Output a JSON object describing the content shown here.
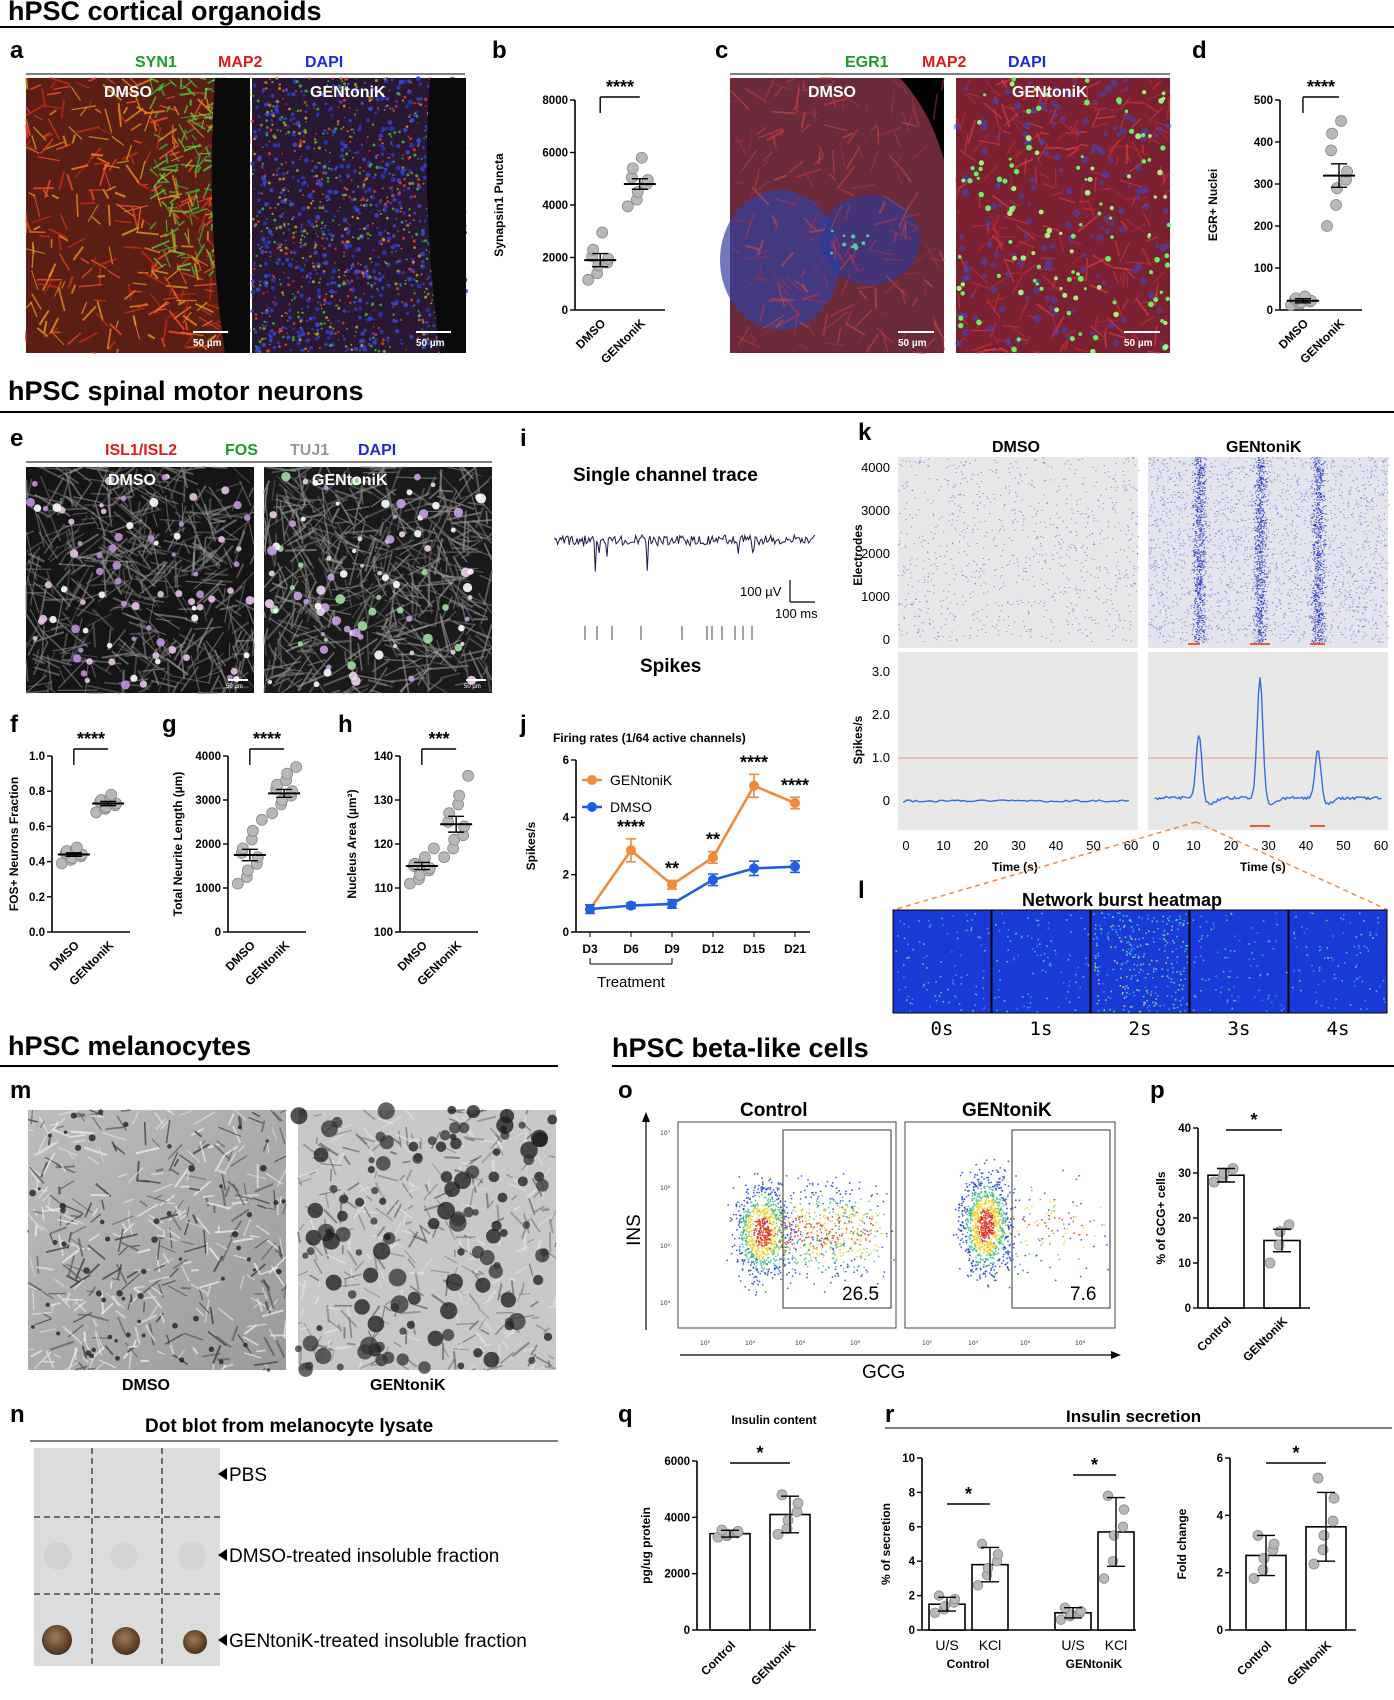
{
  "sections": {
    "cortical": "hPSC cortical organoids",
    "motor": "hPSC spinal motor neurons",
    "melanocytes": "hPSC melanocytes",
    "beta": "hPSC beta-like cells"
  },
  "panel_letters": [
    "a",
    "b",
    "c",
    "d",
    "e",
    "f",
    "g",
    "h",
    "i",
    "j",
    "k",
    "l",
    "m",
    "n",
    "o",
    "p",
    "q",
    "r"
  ],
  "colors": {
    "green": "#1a9a2a",
    "red": "#e01b1b",
    "blue": "#1f2ad6",
    "gray": "#999999",
    "orange": "#f08a3c",
    "dmso_blue": "#1f5fe0",
    "dot": "#b8b8b8"
  },
  "panel_a": {
    "stains": [
      "SYN1",
      "MAP2",
      "DAPI"
    ],
    "images": [
      {
        "label": "DMSO",
        "scalebar": "50 µm"
      },
      {
        "label": "GENtoniK",
        "scalebar": "50 µm"
      }
    ]
  },
  "panel_c": {
    "stains": [
      "EGR1",
      "MAP2",
      "DAPI"
    ],
    "images": [
      {
        "label": "DMSO",
        "scalebar": "50 µm"
      },
      {
        "label": "GENtoniK",
        "scalebar": "50 µm"
      }
    ]
  },
  "panel_e": {
    "stains": [
      "ISL1/ISL2",
      "FOS",
      "TUJ1",
      "DAPI"
    ],
    "images": [
      {
        "label": "DMSO",
        "scalebar": "50 µm"
      },
      {
        "label": "GENtoniK",
        "scalebar": "50 µm"
      }
    ]
  },
  "panel_i": {
    "title": "Single channel trace",
    "scale_v": "100 µV",
    "scale_t": "100 ms",
    "spikes_label": "Spikes"
  },
  "panel_k": {
    "col_titles": [
      "DMSO",
      "GENtoniK"
    ],
    "raster_ylabel": "Electrodes",
    "raster_yticks": [
      "4000",
      "3000",
      "2000",
      "1000",
      "0"
    ],
    "rate_ylabel": "Spikes/s",
    "rate_yticks": [
      "3.0",
      "2.0",
      "1.0",
      "0"
    ],
    "xticks": [
      "0",
      "10",
      "20",
      "30",
      "40",
      "50",
      "60"
    ],
    "xlabel": "Time (s)"
  },
  "panel_l": {
    "title": "Network burst heatmap",
    "frames": [
      "0s",
      "1s",
      "2s",
      "3s",
      "4s"
    ]
  },
  "panel_m": {
    "labels": [
      "DMSO",
      "GENtoniK"
    ]
  },
  "panel_n": {
    "title": "Dot blot from melanocyte lysate",
    "rows": [
      "PBS",
      "DMSO-treated insoluble fraction",
      "GENtoniK-treated insoluble fraction"
    ]
  },
  "panel_o": {
    "titles": [
      "Control",
      "GENtoniK"
    ],
    "ylabel": "INS",
    "xlabel": "GCG",
    "gates": [
      "26.5",
      "7.6"
    ],
    "yticks": [
      "10⁷",
      "10⁶",
      "10⁵",
      "10⁴"
    ],
    "xticks": [
      "10²",
      "10⁴",
      "10⁶",
      "10⁸"
    ]
  },
  "panel_r": {
    "title": "Insulin secretion"
  },
  "chart_data": [
    {
      "panel": "b",
      "type": "scatter",
      "ylabel": "Synapsin1 Puncta",
      "categories": [
        "DMSO",
        "GENtoniK"
      ],
      "ylim": [
        0,
        8000
      ],
      "yticks": [
        "0",
        "2000",
        "4000",
        "6000",
        "8000"
      ],
      "means": [
        1900,
        4800
      ],
      "sem": [
        250,
        200
      ],
      "points": [
        [
          1150,
          1400,
          1700,
          1800,
          1950,
          2050,
          2300,
          2950
        ],
        [
          3950,
          4200,
          4500,
          4800,
          4950,
          5050,
          5400,
          5800
        ]
      ],
      "significance": "****"
    },
    {
      "panel": "d",
      "type": "scatter",
      "ylabel": "EGR+ Nuclei",
      "categories": [
        "DMSO",
        "GENtoniK"
      ],
      "ylim": [
        0,
        500
      ],
      "yticks": [
        "0",
        "100",
        "200",
        "300",
        "400",
        "500"
      ],
      "means": [
        22,
        320
      ],
      "sem": [
        5,
        28
      ],
      "points": [
        [
          12,
          15,
          18,
          20,
          22,
          25,
          28,
          32
        ],
        [
          200,
          250,
          290,
          310,
          330,
          380,
          420,
          450
        ]
      ],
      "significance": "****"
    },
    {
      "panel": "f",
      "type": "scatter",
      "ylabel": "FOS+ Neurons Fraction",
      "categories": [
        "DMSO",
        "GENtoniK"
      ],
      "ylim": [
        0,
        1.0
      ],
      "yticks": [
        "0.0",
        "0.2",
        "0.4",
        "0.6",
        "0.8",
        "1.0"
      ],
      "means": [
        0.44,
        0.73
      ],
      "sem": [
        0.01,
        0.012
      ],
      "points": [
        [
          0.39,
          0.41,
          0.42,
          0.43,
          0.44,
          0.45,
          0.46,
          0.47,
          0.48
        ],
        [
          0.68,
          0.7,
          0.71,
          0.72,
          0.73,
          0.74,
          0.75,
          0.76,
          0.78
        ]
      ],
      "significance": "****"
    },
    {
      "panel": "g",
      "type": "scatter",
      "ylabel": "Total Neurite Length (µm)",
      "categories": [
        "DMSO",
        "GENtoniK"
      ],
      "ylim": [
        0,
        4000
      ],
      "yticks": [
        "0",
        "1000",
        "2000",
        "3000",
        "4000"
      ],
      "means": [
        1750,
        3150
      ],
      "sem": [
        130,
        90
      ],
      "points": [
        [
          1100,
          1250,
          1400,
          1550,
          1700,
          1800,
          1900,
          2100,
          2300,
          2550
        ],
        [
          2700,
          2900,
          3000,
          3100,
          3200,
          3250,
          3350,
          3450,
          3600,
          3750
        ]
      ],
      "significance": "****"
    },
    {
      "panel": "h",
      "type": "scatter",
      "ylabel": "Nucleus Area (µm²)",
      "categories": [
        "DMSO",
        "GENtoniK"
      ],
      "ylim": [
        100,
        140
      ],
      "yticks": [
        "100",
        "110",
        "120",
        "130",
        "140"
      ],
      "means": [
        115,
        124.5
      ],
      "sem": [
        0.8,
        1.8
      ],
      "points": [
        [
          111,
          112,
          113,
          114,
          114.5,
          115,
          115.5,
          116,
          117,
          119
        ],
        [
          117,
          119,
          121,
          122,
          124,
          125,
          127,
          129,
          131,
          135.5
        ]
      ],
      "significance": "***"
    },
    {
      "panel": "j",
      "type": "line",
      "title": "Firing rates (1/64 active channels)",
      "ylabel": "Spikes/s",
      "xlabel": "Treatment",
      "categories": [
        "D3",
        "D6",
        "D9",
        "D12",
        "D15",
        "D21"
      ],
      "ylim": [
        0,
        6
      ],
      "yticks": [
        "0",
        "2",
        "4",
        "6"
      ],
      "series": [
        {
          "name": "GENtoniK",
          "values": [
            0.8,
            2.85,
            1.65,
            2.6,
            5.1,
            4.5
          ],
          "err": [
            0.15,
            0.4,
            0.15,
            0.2,
            0.4,
            0.2
          ]
        },
        {
          "name": "DMSO",
          "values": [
            0.8,
            0.92,
            0.98,
            1.82,
            2.22,
            2.28
          ],
          "err": [
            0.15,
            0.1,
            0.15,
            0.2,
            0.25,
            0.2
          ]
        }
      ],
      "significance": [
        "",
        "****",
        "**",
        "**",
        "****",
        "****"
      ]
    },
    {
      "panel": "p",
      "type": "bar",
      "ylabel": "% of GCG+ cells",
      "categories": [
        "Control",
        "GENtoniK"
      ],
      "ylim": [
        0,
        40
      ],
      "yticks": [
        "0",
        "10",
        "20",
        "30",
        "40"
      ],
      "values": [
        29.5,
        15
      ],
      "err": [
        1.5,
        2.5
      ],
      "points": [
        [
          28,
          29,
          30,
          31
        ],
        [
          10,
          14,
          17,
          18.5
        ]
      ],
      "significance": "*"
    },
    {
      "panel": "q",
      "type": "bar",
      "title": "Insulin content",
      "ylabel": "pg/ug protein",
      "categories": [
        "Control",
        "GENtoniK"
      ],
      "ylim": [
        0,
        6000
      ],
      "yticks": [
        "0",
        "2000",
        "4000",
        "6000"
      ],
      "values": [
        3420,
        4100
      ],
      "err": [
        120,
        650
      ],
      "points": [
        [
          3300,
          3350,
          3400,
          3450,
          3500,
          3550
        ],
        [
          3400,
          3600,
          3900,
          4200,
          4500,
          4800
        ]
      ],
      "significance": "*"
    },
    {
      "panel": "r1",
      "type": "bar",
      "ylabel": "% of secretion",
      "categories": [
        "U/S",
        "KCl",
        "U/S",
        "KCl"
      ],
      "groups": [
        "Control",
        "GENtoniK"
      ],
      "ylim": [
        0,
        10
      ],
      "yticks": [
        "0",
        "2",
        "4",
        "6",
        "8",
        "10"
      ],
      "values": [
        1.5,
        3.8,
        1.0,
        5.7
      ],
      "err": [
        0.4,
        1.0,
        0.3,
        2.0
      ],
      "points": [
        [
          1.0,
          1.2,
          1.4,
          1.6,
          1.8,
          2.0
        ],
        [
          2.6,
          3.2,
          3.6,
          4.0,
          4.4,
          5.0
        ],
        [
          0.6,
          0.8,
          0.9,
          1.0,
          1.1,
          1.3
        ],
        [
          3.0,
          4.0,
          5.5,
          6.0,
          7.0,
          7.8
        ]
      ],
      "significance": [
        "*",
        "*"
      ]
    },
    {
      "panel": "r2",
      "type": "bar",
      "ylabel": "Fold change",
      "categories": [
        "Control",
        "GENtoniK"
      ],
      "ylim": [
        0,
        6
      ],
      "yticks": [
        "0",
        "2",
        "4",
        "6"
      ],
      "values": [
        2.6,
        3.6
      ],
      "err": [
        0.7,
        1.2
      ],
      "points": [
        [
          1.8,
          2.1,
          2.5,
          2.8,
          3.0,
          3.3
        ],
        [
          2.3,
          2.8,
          3.3,
          3.8,
          4.6,
          5.3
        ]
      ],
      "significance": "*"
    }
  ]
}
